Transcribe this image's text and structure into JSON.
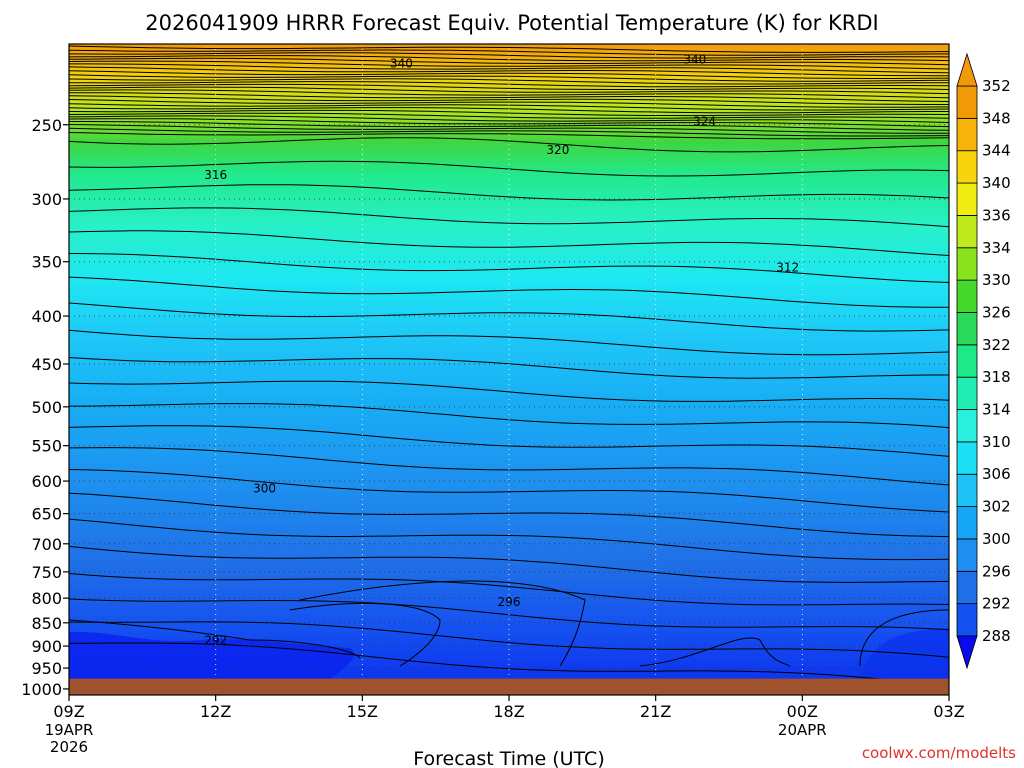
{
  "chart_data": {
    "type": "heatmap",
    "title": "2026041909 HRRR Forecast Equiv. Potential Temperature (K) for KRDI",
    "xlabel": "Forecast Time (UTC)",
    "ylabel": "",
    "x_ticks": [
      {
        "hour": 0,
        "label": "09Z",
        "sub": [
          "19APR",
          "2026"
        ]
      },
      {
        "hour": 3,
        "label": "12Z",
        "sub": []
      },
      {
        "hour": 6,
        "label": "15Z",
        "sub": []
      },
      {
        "hour": 9,
        "label": "18Z",
        "sub": []
      },
      {
        "hour": 12,
        "label": "21Z",
        "sub": []
      },
      {
        "hour": 15,
        "label": "00Z",
        "sub": [
          "20APR"
        ]
      },
      {
        "hour": 18,
        "label": "03Z",
        "sub": []
      }
    ],
    "y_scale": "log-pressure",
    "y_range_hpa": [
      1015,
      205
    ],
    "y_ticks": [
      250,
      300,
      350,
      400,
      450,
      500,
      550,
      600,
      650,
      700,
      750,
      800,
      850,
      900,
      950,
      1000
    ],
    "ground_pressure_hpa": 975,
    "colorbar": {
      "levels": [
        288,
        292,
        296,
        300,
        302,
        306,
        310,
        314,
        318,
        322,
        326,
        330,
        334,
        336,
        340,
        344,
        348,
        352
      ],
      "colors": [
        "#0a0aee",
        "#1550f0",
        "#1f6fe6",
        "#1e8ff0",
        "#15a6f5",
        "#1ec2f7",
        "#1ee0f5",
        "#28f0dc",
        "#22eeb4",
        "#1fe889",
        "#2ad95a",
        "#46d82a",
        "#8ae21f",
        "#c0ea1d",
        "#f0ec12",
        "#f7d40d",
        "#f6b40a",
        "#f09a08"
      ]
    },
    "contour_labels": [
      {
        "value": "340",
        "hour": 6.8,
        "p": 215
      },
      {
        "value": "340",
        "hour": 12.8,
        "p": 213
      },
      {
        "value": "324",
        "hour": 13.0,
        "p": 248
      },
      {
        "value": "320",
        "hour": 10.0,
        "p": 266
      },
      {
        "value": "316",
        "hour": 3.0,
        "p": 283
      },
      {
        "value": "312",
        "hour": 14.7,
        "p": 355
      },
      {
        "value": "300",
        "hour": 4.0,
        "p": 611
      },
      {
        "value": "296",
        "hour": 9.0,
        "p": 808
      },
      {
        "value": "292",
        "hour": 3.0,
        "p": 888
      }
    ],
    "credit": "coolwx.com/modelts"
  }
}
